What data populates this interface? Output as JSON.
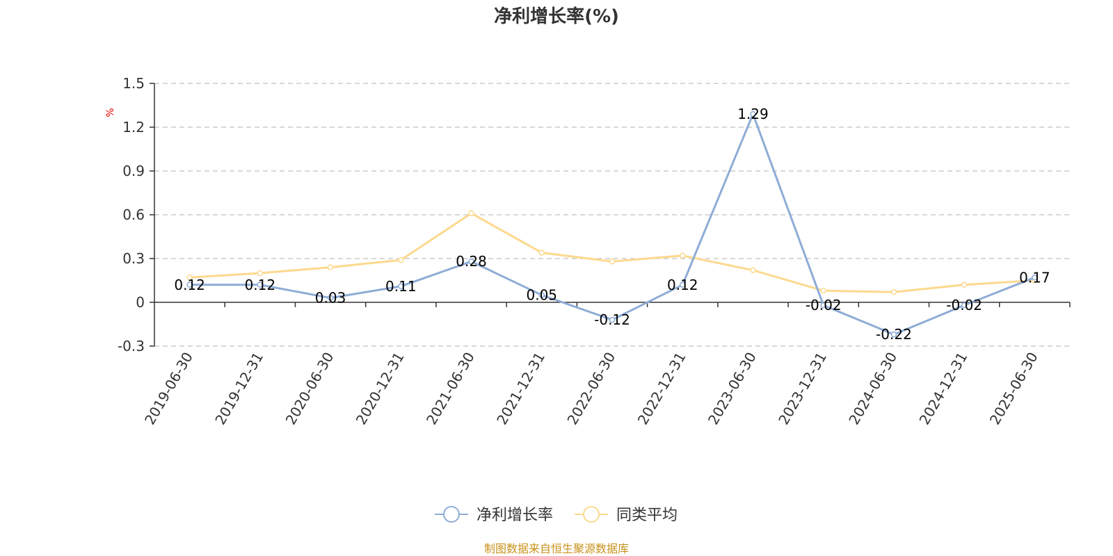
{
  "chart_data": {
    "type": "line",
    "title": "净利增长率(%)",
    "ylabel": "%",
    "xlabel": "",
    "categories": [
      "2019-06-30",
      "2019-12-31",
      "2020-06-30",
      "2020-12-31",
      "2021-06-30",
      "2021-12-31",
      "2022-06-30",
      "2022-12-31",
      "2023-06-30",
      "2023-12-31",
      "2024-06-30",
      "2024-12-31",
      "2025-06-30"
    ],
    "ylim": [
      -0.3,
      1.5
    ],
    "yticks": [
      -0.3,
      0,
      0.3,
      0.6,
      0.9,
      1.2,
      1.5
    ],
    "ytick_labels": [
      "-0.3",
      "0",
      "0.3",
      "0.6",
      "0.9",
      "1.2",
      "1.5"
    ],
    "grid": true,
    "legend_position": "bottom",
    "series": [
      {
        "name": "净利增长率",
        "color": "#8eacd6",
        "values": [
          0.12,
          0.12,
          0.03,
          0.11,
          0.28,
          0.05,
          -0.12,
          0.12,
          1.29,
          -0.02,
          -0.22,
          -0.02,
          0.17
        ],
        "labels": [
          "0.12",
          "0.12",
          "0.03",
          "0.11",
          "0.28",
          "0.05",
          "-0.12",
          "0.12",
          "1.29",
          "-0.02",
          "-0.22",
          "-0.02",
          "0.17"
        ]
      },
      {
        "name": "同类平均",
        "color": "#fcd98e",
        "values": [
          0.17,
          0.2,
          0.24,
          0.29,
          0.61,
          0.34,
          0.28,
          0.32,
          0.22,
          0.08,
          0.07,
          0.12,
          0.15
        ]
      }
    ]
  },
  "footer": {
    "source": "制图数据来自恒生聚源数据库"
  }
}
